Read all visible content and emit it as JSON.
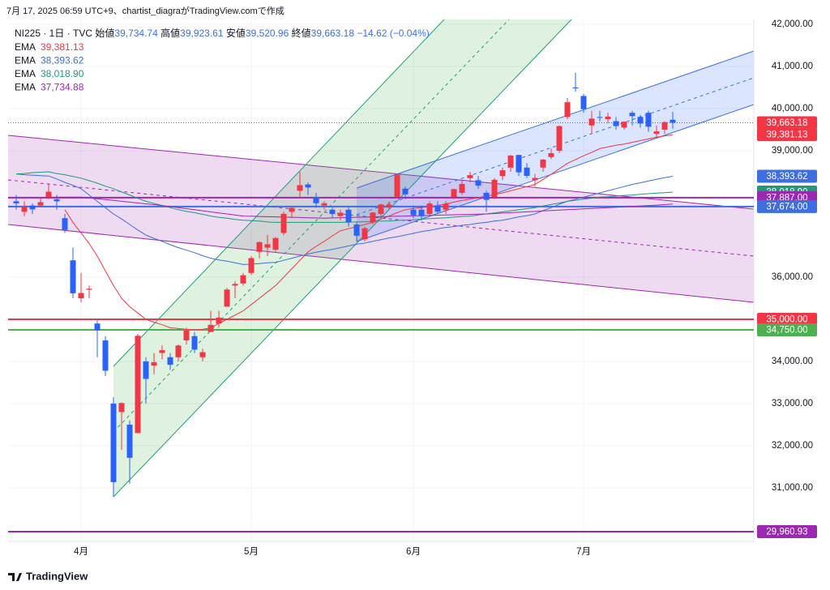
{
  "chart_data": {
    "type": "candlestick",
    "caption": "7月 17, 2025 06:59 UTC+9、chartist_diagraがTradingView.comで作成",
    "symbol": "NI225 · 1日 · TVC",
    "ohlc_legend": [
      {
        "name": "始値",
        "value": "39,734.74"
      },
      {
        "name": "高値",
        "value": "39,923.61"
      },
      {
        "name": "安値",
        "value": "39,520.96"
      },
      {
        "name": "終値",
        "value": "39,663.18"
      }
    ],
    "change": "−14.62 (−0.04%)",
    "brand": "TradingView",
    "up_color": "#f23645",
    "down_color": "#2962ff",
    "categories": [
      null,
      null,
      null,
      null,
      null,
      null,
      null,
      null,
      "4月",
      null,
      null,
      null,
      null,
      null,
      null,
      null,
      null,
      null,
      null,
      null,
      null,
      null,
      null,
      null,
      null,
      null,
      null,
      null,
      null,
      "5月",
      null,
      null,
      null,
      null,
      null,
      null,
      null,
      null,
      null,
      null,
      null,
      null,
      null,
      null,
      null,
      null,
      null,
      null,
      null,
      "6月",
      null,
      null,
      null,
      null,
      null,
      null,
      null,
      null,
      null,
      null,
      null,
      null,
      null,
      null,
      null,
      null,
      null,
      null,
      null,
      null,
      "7月",
      null,
      null,
      null,
      null,
      null,
      null,
      null,
      null,
      null,
      null,
      null
    ],
    "open": [
      37800,
      37550,
      37700,
      37700,
      37900,
      37850,
      37400,
      36400,
      35500,
      35700,
      34900,
      34500,
      33000,
      32800,
      32500,
      32300,
      34000,
      33900,
      34200,
      34100,
      34100,
      34500,
      34600,
      34100,
      34700,
      34900,
      35300,
      35800,
      35850,
      36100,
      36600,
      36700,
      36650,
      37050,
      37550,
      38050,
      38200,
      37900,
      37700,
      37600,
      37450,
      37600,
      37250,
      36900,
      37300,
      37500,
      37650,
      37900,
      38100,
      37600,
      37600,
      37500,
      37700,
      37600,
      37900,
      38000,
      38350,
      38300,
      38000,
      37900,
      38400,
      38600,
      38900,
      38600,
      38300,
      38600,
      38850,
      39000,
      39800,
      40500,
      40300,
      39600,
      39800,
      39750,
      39700,
      39550,
      39900,
      39800,
      39900,
      39400,
      39500,
      39734.74
    ],
    "high": [
      37950,
      37800,
      37750,
      37900,
      38220,
      37950,
      37500,
      36700,
      36100,
      35800,
      35000,
      34600,
      33150,
      33030,
      32600,
      34650,
      34100,
      34200,
      34380,
      34200,
      34400,
      34800,
      34700,
      34300,
      35200,
      35200,
      35750,
      35900,
      36100,
      36500,
      36850,
      37000,
      36950,
      37550,
      37650,
      38500,
      38250,
      38000,
      37800,
      37650,
      37600,
      37650,
      37300,
      37200,
      37550,
      37750,
      37800,
      38450,
      38150,
      37700,
      37700,
      37800,
      37800,
      37800,
      38100,
      38300,
      38500,
      38400,
      38050,
      38350,
      38600,
      38900,
      38900,
      38700,
      38450,
      38800,
      39050,
      39600,
      40250,
      40850,
      40350,
      39950,
      39950,
      39900,
      39800,
      39700,
      39950,
      39850,
      39950,
      39600,
      39700,
      39923.61
    ],
    "low": [
      37600,
      37450,
      37500,
      37650,
      37850,
      37600,
      37050,
      35500,
      35400,
      35500,
      34100,
      33650,
      30790,
      31900,
      31100,
      32300,
      33000,
      33700,
      34050,
      33800,
      34000,
      34400,
      34200,
      34000,
      34700,
      34800,
      35300,
      35500,
      35800,
      36050,
      36450,
      36500,
      36600,
      37000,
      37400,
      37900,
      37950,
      37650,
      37600,
      37400,
      37350,
      37200,
      36850,
      36850,
      37250,
      37400,
      37600,
      37900,
      37850,
      37400,
      37350,
      37450,
      37500,
      37500,
      37850,
      37950,
      38250,
      38100,
      37550,
      37850,
      38300,
      38500,
      38400,
      38350,
      38150,
      38500,
      38800,
      38950,
      39750,
      40400,
      39900,
      39400,
      39700,
      39650,
      39500,
      39500,
      39600,
      39550,
      39450,
      39300,
      39400,
      39520.96
    ],
    "close": [
      37751,
      37677,
      37608,
      37780,
      38027,
      37800,
      37120,
      35617,
      35624,
      35725,
      34735,
      33780,
      31136,
      33012,
      31714,
      34609,
      33586,
      33982,
      34267,
      33920,
      34377,
      34730,
      34280,
      34220,
      34868,
      35039,
      35705,
      35839,
      36045,
      36452,
      36830,
      36780,
      36928,
      37503,
      37644,
      38183,
      38128,
      37755,
      37753,
      37498,
      37529,
      37299,
      36985,
      37160,
      37531,
      37724,
      37722,
      38432,
      37965,
      37470,
      37446,
      37747,
      37554,
      37741,
      38088,
      38211,
      38421,
      38173,
      37834,
      38311,
      38536,
      38885,
      38488,
      38403,
      38354,
      38790,
      38942,
      39584,
      40150,
      40487,
      39986,
      39762,
      39785,
      39810,
      39587,
      39688,
      39821,
      39646,
      39569,
      39459,
      39678,
      39663.18
    ],
    "last_price": {
      "value": 39663.18,
      "label": "39,663.18",
      "color": "#f23645"
    },
    "series": [
      {
        "name": "EMA",
        "color": "#f23645",
        "last_label": "39,381.13",
        "values": [
          null,
          null,
          null,
          null,
          null,
          null,
          37600,
          37300,
          37050,
          36800,
          36500,
          36150,
          35800,
          35500,
          35300,
          35150,
          35000,
          34930,
          34870,
          34800,
          34780,
          34760,
          34750,
          34760,
          34800,
          34900,
          35000,
          35100,
          35200,
          35350,
          35500,
          35650,
          35800,
          36000,
          36200,
          36400,
          36600,
          36730,
          36850,
          36980,
          37100,
          37150,
          37200,
          37250,
          37300,
          37380,
          37450,
          37530,
          37600,
          37630,
          37650,
          37680,
          37700,
          37740,
          37780,
          37820,
          37850,
          37890,
          37920,
          37960,
          38000,
          38050,
          38100,
          38150,
          38200,
          38320,
          38440,
          38570,
          38700,
          38790,
          38880,
          38960,
          39050,
          39090,
          39130,
          39160,
          39200,
          39240,
          39280,
          39320,
          39350,
          39381.13
        ]
      },
      {
        "name": "EMA",
        "color": "#3d6fe0",
        "last_label": "38,393.62",
        "values": [
          38450,
          38430,
          38420,
          38410,
          38400,
          38330,
          38250,
          38180,
          38100,
          37950,
          37800,
          37650,
          37500,
          37380,
          37250,
          37120,
          37000,
          36920,
          36850,
          36770,
          36700,
          36640,
          36580,
          36510,
          36450,
          36410,
          36380,
          36340,
          36300,
          36310,
          36320,
          36340,
          36350,
          36400,
          36450,
          36500,
          36550,
          36590,
          36630,
          36660,
          36700,
          36740,
          36780,
          36810,
          36850,
          36890,
          36930,
          36960,
          37000,
          37040,
          37080,
          37110,
          37150,
          37180,
          37200,
          37230,
          37250,
          37280,
          37300,
          37330,
          37350,
          37390,
          37430,
          37460,
          37500,
          37580,
          37650,
          37730,
          37800,
          37850,
          37900,
          37950,
          38000,
          38050,
          38100,
          38150,
          38200,
          38240,
          38280,
          38320,
          38360,
          38393.62
        ]
      },
      {
        "name": "EMA",
        "color": "#1e9a78",
        "last_label": "38,018.90",
        "values": [
          38450,
          38460,
          38480,
          38490,
          38500,
          38460,
          38430,
          38390,
          38350,
          38290,
          38230,
          38160,
          38100,
          38020,
          37950,
          37870,
          37800,
          37750,
          37700,
          37650,
          37600,
          37560,
          37530,
          37490,
          37450,
          37420,
          37400,
          37370,
          37350,
          37340,
          37330,
          37310,
          37300,
          37300,
          37300,
          37300,
          37300,
          37300,
          37300,
          37300,
          37300,
          37305,
          37310,
          37315,
          37320,
          37330,
          37335,
          37345,
          37350,
          37360,
          37375,
          37390,
          37400,
          37410,
          37425,
          37440,
          37450,
          37475,
          37500,
          37525,
          37550,
          37575,
          37600,
          37625,
          37650,
          37690,
          37725,
          37760,
          37800,
          37825,
          37850,
          37875,
          37900,
          37910,
          37925,
          37940,
          37950,
          37965,
          37980,
          37995,
          38005,
          38018.9
        ]
      },
      {
        "name": "EMA",
        "color": "#9c27b0",
        "last_label": "37,734.88",
        "values": [
          37880,
          37885,
          37890,
          37890,
          37895,
          37895,
          37900,
          37900,
          37900,
          37880,
          37860,
          37840,
          37820,
          37800,
          37780,
          37760,
          37740,
          37720,
          37700,
          37675,
          37650,
          37625,
          37600,
          37575,
          37550,
          37525,
          37500,
          37475,
          37450,
          37445,
          37440,
          37435,
          37430,
          37425,
          37420,
          37415,
          37410,
          37405,
          37400,
          37405,
          37410,
          37415,
          37420,
          37425,
          37430,
          37435,
          37440,
          37445,
          37450,
          37455,
          37460,
          37465,
          37470,
          37475,
          37480,
          37485,
          37490,
          37495,
          37500,
          37510,
          37520,
          37530,
          37540,
          37550,
          37560,
          37570,
          37580,
          37590,
          37600,
          37610,
          37620,
          37630,
          37640,
          37650,
          37660,
          37670,
          37680,
          37690,
          37700,
          37710,
          37720,
          37734.88
        ]
      }
    ],
    "hlines": [
      {
        "value": 37887,
        "label": "37,887.00",
        "color": "#9c27b0"
      },
      {
        "value": 37674,
        "label": "37,674.00",
        "color": "#3d6fe0"
      },
      {
        "value": 35000,
        "label": "35,000.00",
        "color": "#f23645"
      },
      {
        "value": 34750,
        "label": "34,750.00",
        "color": "#4caf50"
      },
      {
        "value": 29960.93,
        "label": "29,960.93",
        "color": "#9c27b0"
      }
    ],
    "ylim": [
      29730,
      42115
    ],
    "yticks": [
      {
        "value": 31000,
        "label": "31,000.00"
      },
      {
        "value": 32000,
        "label": "32,000.00"
      },
      {
        "value": 33000,
        "label": "33,000.00"
      },
      {
        "value": 34000,
        "label": "34,000.00"
      },
      {
        "value": 36000,
        "label": "36,000.00"
      },
      {
        "value": 39000,
        "label": "39,000.00"
      },
      {
        "value": 40000,
        "label": "40,000.00"
      },
      {
        "value": 41000,
        "label": "41,000.00"
      },
      {
        "value": 42000,
        "label": "42,000.00"
      }
    ],
    "grid": true
  }
}
